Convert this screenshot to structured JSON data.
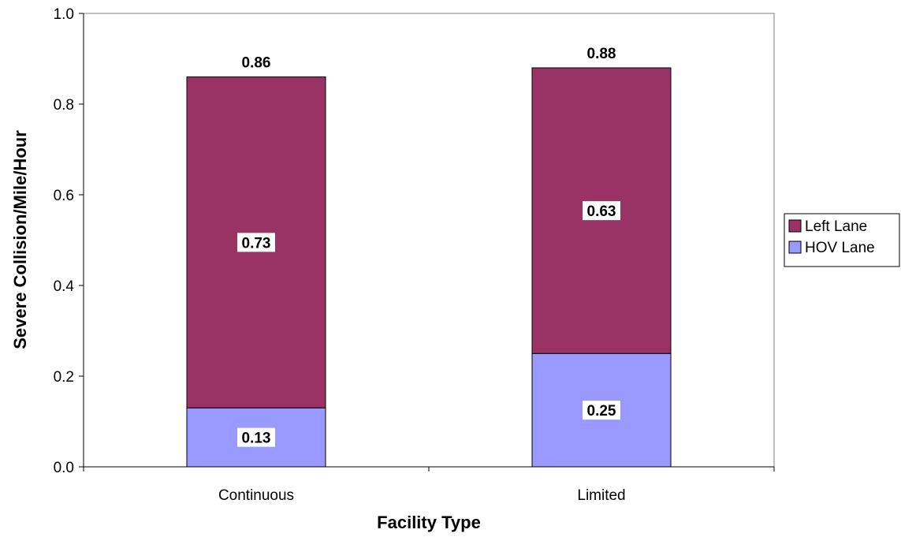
{
  "chart_data": {
    "type": "bar",
    "stacked": true,
    "title": "",
    "xlabel": "Facility Type",
    "ylabel": "Severe Collision/Mile/Hour",
    "categories": [
      "Continuous",
      "Limited"
    ],
    "series": [
      {
        "name": "HOV Lane",
        "color": "#9999ff",
        "values": [
          0.13,
          0.25
        ],
        "labels": [
          "0.13",
          "0.25"
        ]
      },
      {
        "name": "Left Lane",
        "color": "#993366",
        "values": [
          0.73,
          0.63
        ],
        "labels": [
          "0.73",
          "0.63"
        ]
      }
    ],
    "totals": [
      0.86,
      0.88
    ],
    "total_labels": [
      "0.86",
      "0.88"
    ],
    "ylim": [
      0,
      1.0
    ],
    "yticks": [
      0.0,
      0.2,
      0.4,
      0.6,
      0.8,
      1.0
    ],
    "ytick_labels": [
      "0.0",
      "0.2",
      "0.4",
      "0.6",
      "0.8",
      "1.0"
    ],
    "grid": false,
    "legend_placement": "right",
    "legend": [
      {
        "name": "Left Lane",
        "color": "#993366"
      },
      {
        "name": "HOV Lane",
        "color": "#9999ff"
      }
    ]
  }
}
